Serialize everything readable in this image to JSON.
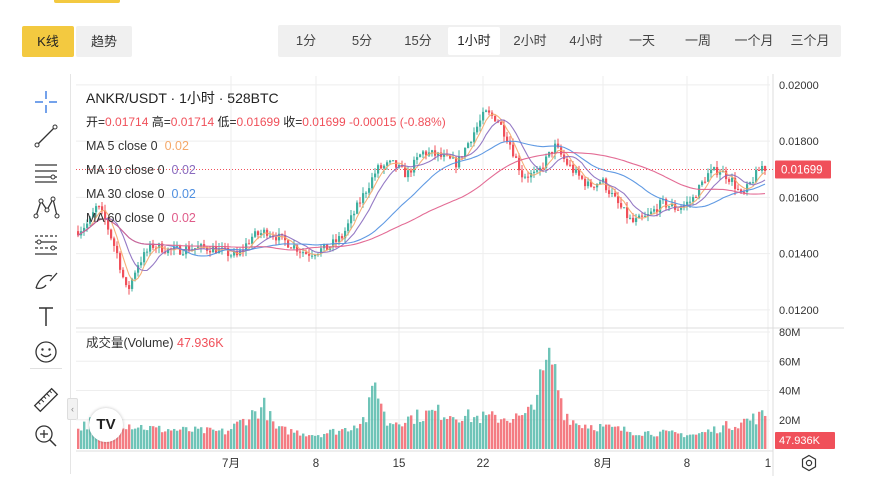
{
  "modes": [
    {
      "label": "K线",
      "active": true
    },
    {
      "label": "趋势",
      "active": false
    }
  ],
  "intervals": [
    {
      "label": "1分",
      "active": false
    },
    {
      "label": "5分",
      "active": false
    },
    {
      "label": "15分",
      "active": false
    },
    {
      "label": "1小时",
      "active": true
    },
    {
      "label": "2小时",
      "active": false
    },
    {
      "label": "4小时",
      "active": false
    },
    {
      "label": "一天",
      "active": false
    },
    {
      "label": "一周",
      "active": false
    },
    {
      "label": "一个月",
      "active": false
    },
    {
      "label": "三个月",
      "active": false
    }
  ],
  "toolbar": {
    "tools": [
      "crosshair-icon",
      "trend-line-icon",
      "horizontal-lines-icon",
      "pattern-icon",
      "fib-levels-icon",
      "brush-icon",
      "text-icon",
      "emoji-icon",
      "ruler-icon",
      "zoom-in-icon"
    ]
  },
  "legend": {
    "title": "ANKR/USDT · 1小时 · 528BTC",
    "open_label": "开=",
    "open": "0.01714",
    "high_label": "高=",
    "high": "0.01714",
    "low_label": "低=",
    "low": "0.01699",
    "close_label": "收=",
    "close": "0.01699",
    "change": "-0.00015 (-0.88%)",
    "ma": [
      {
        "label": "MA 5 close 0",
        "value": "0.02",
        "color": "#f5a96a"
      },
      {
        "label": "MA 10 close 0",
        "value": "0.02",
        "color": "#8a6bbf"
      },
      {
        "label": "MA 30 close 0",
        "value": "0.02",
        "color": "#4f8fe0"
      },
      {
        "label": "MA 60 close 0",
        "value": "0.02",
        "color": "#e05c8a"
      }
    ],
    "volume_label": "成交量(Volume)",
    "volume_value": "47.936K"
  },
  "colors": {
    "up": "#3fb0a0",
    "down": "#f0505a",
    "grid": "#eeeeee",
    "accent": "#f3c940"
  },
  "chart_data": {
    "type": "candlestick",
    "symbol": "ANKR/USDT",
    "interval": "1小时",
    "price_axis": {
      "ticks": [
        "0.02000",
        "0.01800",
        "0.01600",
        "0.01400",
        "0.01200"
      ],
      "range": [
        0.0115,
        0.0201
      ]
    },
    "current_price": "0.01699",
    "volume_axis": {
      "ticks": [
        "80M",
        "60M",
        "40M",
        "20M"
      ],
      "range": [
        0,
        80
      ]
    },
    "current_volume": "47.936K",
    "x_ticks": [
      "7月",
      "8",
      "15",
      "22",
      "8月",
      "8",
      "1"
    ],
    "price_path": [
      {
        "x": 0,
        "y": 0.0148
      },
      {
        "x": 12,
        "y": 0.0151
      },
      {
        "x": 20,
        "y": 0.0157
      },
      {
        "x": 28,
        "y": 0.0152
      },
      {
        "x": 40,
        "y": 0.014
      },
      {
        "x": 50,
        "y": 0.0126
      },
      {
        "x": 60,
        "y": 0.0136
      },
      {
        "x": 75,
        "y": 0.0143
      },
      {
        "x": 95,
        "y": 0.0141
      },
      {
        "x": 115,
        "y": 0.0142
      },
      {
        "x": 135,
        "y": 0.0142
      },
      {
        "x": 160,
        "y": 0.0139
      },
      {
        "x": 175,
        "y": 0.0146
      },
      {
        "x": 190,
        "y": 0.0148
      },
      {
        "x": 210,
        "y": 0.0144
      },
      {
        "x": 230,
        "y": 0.014
      },
      {
        "x": 250,
        "y": 0.0142
      },
      {
        "x": 265,
        "y": 0.0146
      },
      {
        "x": 285,
        "y": 0.016
      },
      {
        "x": 300,
        "y": 0.017
      },
      {
        "x": 315,
        "y": 0.0172
      },
      {
        "x": 330,
        "y": 0.0168
      },
      {
        "x": 345,
        "y": 0.0176
      },
      {
        "x": 360,
        "y": 0.0175
      },
      {
        "x": 380,
        "y": 0.0172
      },
      {
        "x": 395,
        "y": 0.0182
      },
      {
        "x": 408,
        "y": 0.019
      },
      {
        "x": 420,
        "y": 0.0188
      },
      {
        "x": 432,
        "y": 0.018
      },
      {
        "x": 445,
        "y": 0.0168
      },
      {
        "x": 460,
        "y": 0.0168
      },
      {
        "x": 470,
        "y": 0.0174
      },
      {
        "x": 478,
        "y": 0.0178
      },
      {
        "x": 490,
        "y": 0.0172
      },
      {
        "x": 500,
        "y": 0.0168
      },
      {
        "x": 512,
        "y": 0.0164
      },
      {
        "x": 525,
        "y": 0.0166
      },
      {
        "x": 540,
        "y": 0.0158
      },
      {
        "x": 555,
        "y": 0.0151
      },
      {
        "x": 570,
        "y": 0.0153
      },
      {
        "x": 585,
        "y": 0.0158
      },
      {
        "x": 600,
        "y": 0.0156
      },
      {
        "x": 615,
        "y": 0.0159
      },
      {
        "x": 630,
        "y": 0.0168
      },
      {
        "x": 642,
        "y": 0.017
      },
      {
        "x": 655,
        "y": 0.0166
      },
      {
        "x": 665,
        "y": 0.016
      },
      {
        "x": 675,
        "y": 0.0166
      },
      {
        "x": 685,
        "y": 0.0171
      },
      {
        "x": 690,
        "y": 0.017
      }
    ],
    "volume_profile": [
      {
        "x": 0,
        "v": 14
      },
      {
        "x": 30,
        "v": 24
      },
      {
        "x": 45,
        "v": 18
      },
      {
        "x": 80,
        "v": 14
      },
      {
        "x": 150,
        "v": 12
      },
      {
        "x": 188,
        "v": 30
      },
      {
        "x": 200,
        "v": 14
      },
      {
        "x": 240,
        "v": 10
      },
      {
        "x": 270,
        "v": 14
      },
      {
        "x": 290,
        "v": 22
      },
      {
        "x": 300,
        "v": 48
      },
      {
        "x": 310,
        "v": 18
      },
      {
        "x": 360,
        "v": 26
      },
      {
        "x": 400,
        "v": 22
      },
      {
        "x": 450,
        "v": 22
      },
      {
        "x": 475,
        "v": 65
      },
      {
        "x": 488,
        "v": 26
      },
      {
        "x": 500,
        "v": 18
      },
      {
        "x": 560,
        "v": 12
      },
      {
        "x": 620,
        "v": 10
      },
      {
        "x": 680,
        "v": 22
      },
      {
        "x": 690,
        "v": 24
      }
    ]
  }
}
